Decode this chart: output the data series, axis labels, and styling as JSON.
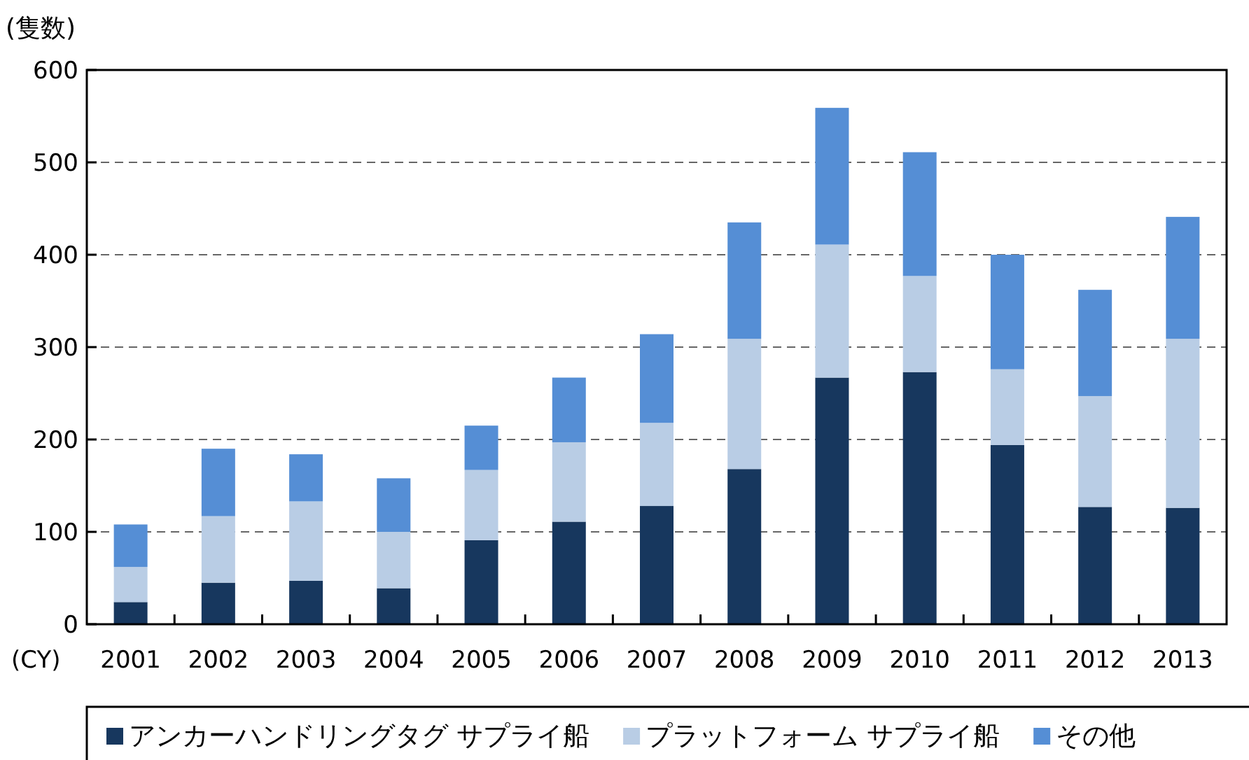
{
  "chart_data": {
    "type": "bar",
    "stacked": true,
    "ylabel": "(隻数)",
    "xlabel": "(CY)",
    "categories": [
      "2001",
      "2002",
      "2003",
      "2004",
      "2005",
      "2006",
      "2007",
      "2008",
      "2009",
      "2010",
      "2011",
      "2012",
      "2013"
    ],
    "series": [
      {
        "name": "アンカーハンドリングタグ サプライ船",
        "color": "#17375e",
        "values": [
          24,
          45,
          47,
          39,
          91,
          111,
          128,
          168,
          267,
          273,
          194,
          127,
          126
        ]
      },
      {
        "name": "プラットフォーム サプライ船",
        "color": "#b9cde5",
        "values": [
          38,
          72,
          86,
          61,
          76,
          86,
          90,
          141,
          144,
          104,
          82,
          120,
          183
        ]
      },
      {
        "name": "その他",
        "color": "#558ed5",
        "values": [
          46,
          73,
          51,
          58,
          48,
          70,
          96,
          126,
          148,
          134,
          124,
          115,
          132
        ]
      }
    ],
    "ylim": [
      0,
      600
    ],
    "yticks": [
      0,
      100,
      200,
      300,
      400,
      500,
      600
    ],
    "grid": "y",
    "legend": "bottom"
  }
}
